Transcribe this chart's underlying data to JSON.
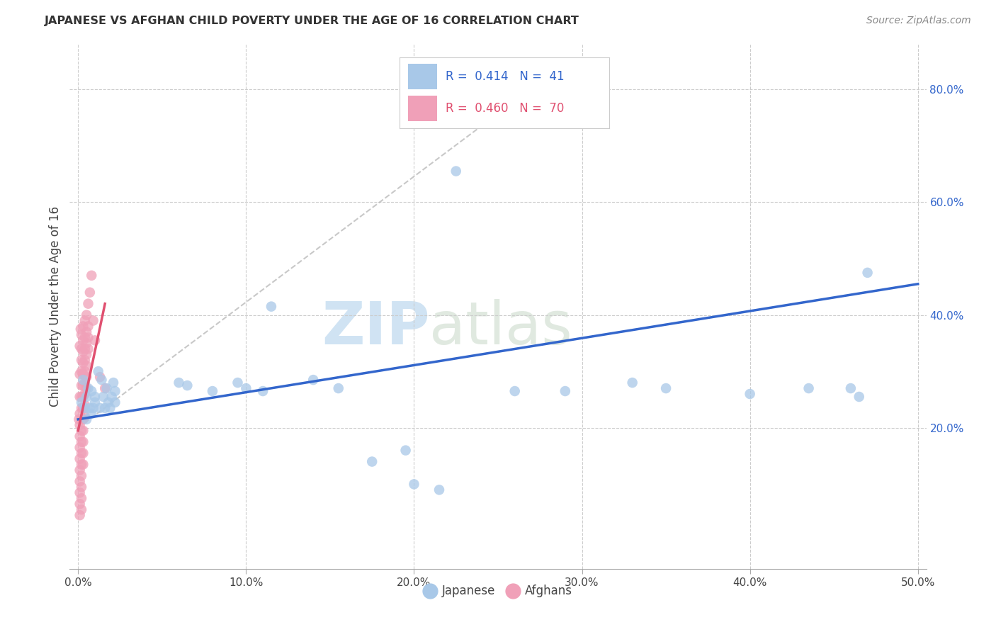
{
  "title": "JAPANESE VS AFGHAN CHILD POVERTY UNDER THE AGE OF 16 CORRELATION CHART",
  "source": "Source: ZipAtlas.com",
  "ylabel": "Child Poverty Under the Age of 16",
  "xlim": [
    -0.005,
    0.505
  ],
  "ylim": [
    -0.05,
    0.88
  ],
  "xticks": [
    0.0,
    0.1,
    0.2,
    0.3,
    0.4,
    0.5
  ],
  "xticklabels": [
    "0.0%",
    "10.0%",
    "20.0%",
    "30.0%",
    "40.0%",
    "50.0%"
  ],
  "yticks_right": [
    0.2,
    0.4,
    0.6,
    0.8
  ],
  "yticklabels_right": [
    "20.0%",
    "40.0%",
    "60.0%",
    "80.0%"
  ],
  "watermark_zip": "ZIP",
  "watermark_atlas": "atlas",
  "japanese_color": "#A8C8E8",
  "afghans_color": "#F0A0B8",
  "japanese_line_color": "#3366CC",
  "afghans_line_color": "#E05070",
  "dashed_line_color": "#BBBBBB",
  "background_color": "#FFFFFF",
  "grid_color": "#CCCCCC",
  "japanese_line_x": [
    0.0,
    0.5
  ],
  "japanese_line_y": [
    0.215,
    0.455
  ],
  "afghans_line_x": [
    0.0,
    0.016
  ],
  "afghans_line_y": [
    0.195,
    0.42
  ],
  "dashed_line_x": [
    0.0,
    0.285
  ],
  "dashed_line_y": [
    0.2,
    0.835
  ],
  "japanese_points": [
    [
      0.002,
      0.245
    ],
    [
      0.003,
      0.285
    ],
    [
      0.004,
      0.235
    ],
    [
      0.005,
      0.215
    ],
    [
      0.005,
      0.255
    ],
    [
      0.006,
      0.27
    ],
    [
      0.007,
      0.235
    ],
    [
      0.008,
      0.265
    ],
    [
      0.008,
      0.225
    ],
    [
      0.009,
      0.235
    ],
    [
      0.01,
      0.255
    ],
    [
      0.01,
      0.245
    ],
    [
      0.012,
      0.3
    ],
    [
      0.013,
      0.235
    ],
    [
      0.014,
      0.285
    ],
    [
      0.015,
      0.255
    ],
    [
      0.016,
      0.235
    ],
    [
      0.017,
      0.27
    ],
    [
      0.018,
      0.245
    ],
    [
      0.019,
      0.235
    ],
    [
      0.02,
      0.255
    ],
    [
      0.021,
      0.28
    ],
    [
      0.022,
      0.265
    ],
    [
      0.022,
      0.245
    ],
    [
      0.06,
      0.28
    ],
    [
      0.065,
      0.275
    ],
    [
      0.08,
      0.265
    ],
    [
      0.095,
      0.28
    ],
    [
      0.1,
      0.27
    ],
    [
      0.11,
      0.265
    ],
    [
      0.115,
      0.415
    ],
    [
      0.14,
      0.285
    ],
    [
      0.155,
      0.27
    ],
    [
      0.175,
      0.14
    ],
    [
      0.195,
      0.16
    ],
    [
      0.2,
      0.1
    ],
    [
      0.215,
      0.09
    ],
    [
      0.225,
      0.655
    ],
    [
      0.26,
      0.265
    ],
    [
      0.29,
      0.265
    ],
    [
      0.33,
      0.28
    ],
    [
      0.35,
      0.27
    ],
    [
      0.4,
      0.26
    ],
    [
      0.435,
      0.27
    ],
    [
      0.46,
      0.27
    ],
    [
      0.465,
      0.255
    ],
    [
      0.47,
      0.475
    ]
  ],
  "afghans_points": [
    [
      0.0005,
      0.215
    ],
    [
      0.001,
      0.345
    ],
    [
      0.001,
      0.295
    ],
    [
      0.001,
      0.255
    ],
    [
      0.001,
      0.225
    ],
    [
      0.001,
      0.205
    ],
    [
      0.001,
      0.185
    ],
    [
      0.001,
      0.165
    ],
    [
      0.001,
      0.145
    ],
    [
      0.001,
      0.125
    ],
    [
      0.001,
      0.105
    ],
    [
      0.001,
      0.085
    ],
    [
      0.001,
      0.065
    ],
    [
      0.001,
      0.045
    ],
    [
      0.0015,
      0.375
    ],
    [
      0.002,
      0.365
    ],
    [
      0.002,
      0.34
    ],
    [
      0.002,
      0.32
    ],
    [
      0.002,
      0.3
    ],
    [
      0.002,
      0.275
    ],
    [
      0.002,
      0.255
    ],
    [
      0.002,
      0.235
    ],
    [
      0.002,
      0.215
    ],
    [
      0.002,
      0.195
    ],
    [
      0.002,
      0.175
    ],
    [
      0.002,
      0.155
    ],
    [
      0.002,
      0.135
    ],
    [
      0.002,
      0.115
    ],
    [
      0.002,
      0.095
    ],
    [
      0.002,
      0.075
    ],
    [
      0.002,
      0.055
    ],
    [
      0.003,
      0.38
    ],
    [
      0.003,
      0.355
    ],
    [
      0.003,
      0.335
    ],
    [
      0.003,
      0.315
    ],
    [
      0.003,
      0.295
    ],
    [
      0.003,
      0.275
    ],
    [
      0.003,
      0.255
    ],
    [
      0.003,
      0.235
    ],
    [
      0.003,
      0.215
    ],
    [
      0.003,
      0.195
    ],
    [
      0.003,
      0.175
    ],
    [
      0.003,
      0.155
    ],
    [
      0.003,
      0.135
    ],
    [
      0.004,
      0.39
    ],
    [
      0.004,
      0.36
    ],
    [
      0.004,
      0.34
    ],
    [
      0.004,
      0.32
    ],
    [
      0.004,
      0.3
    ],
    [
      0.004,
      0.28
    ],
    [
      0.004,
      0.26
    ],
    [
      0.004,
      0.24
    ],
    [
      0.004,
      0.22
    ],
    [
      0.005,
      0.4
    ],
    [
      0.005,
      0.37
    ],
    [
      0.005,
      0.35
    ],
    [
      0.005,
      0.33
    ],
    [
      0.005,
      0.31
    ],
    [
      0.005,
      0.29
    ],
    [
      0.005,
      0.27
    ],
    [
      0.006,
      0.42
    ],
    [
      0.006,
      0.38
    ],
    [
      0.006,
      0.36
    ],
    [
      0.006,
      0.34
    ],
    [
      0.007,
      0.44
    ],
    [
      0.008,
      0.47
    ],
    [
      0.009,
      0.39
    ],
    [
      0.01,
      0.355
    ],
    [
      0.013,
      0.29
    ],
    [
      0.016,
      0.27
    ]
  ]
}
